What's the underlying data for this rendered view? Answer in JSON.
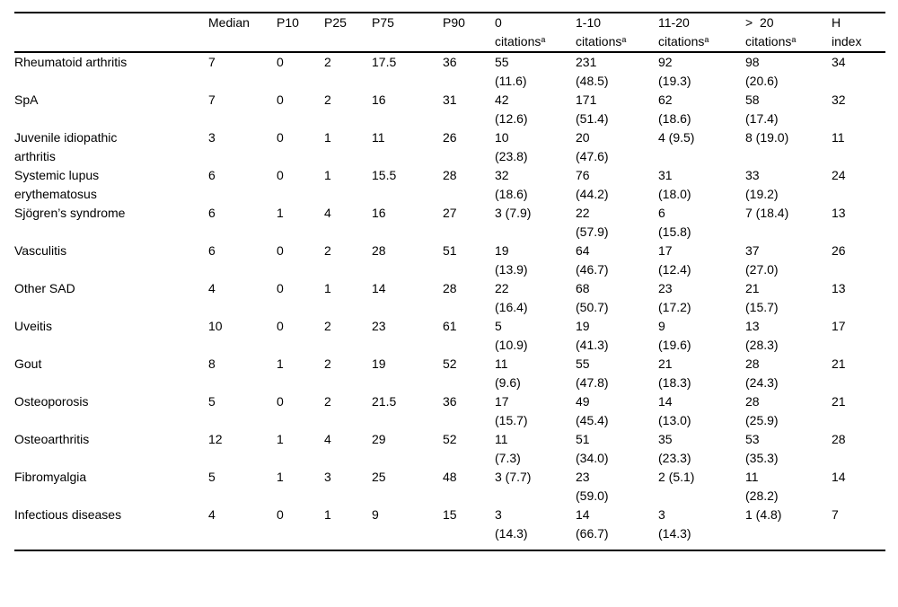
{
  "page": {
    "background_color": "#ffffff",
    "text_color": "#000000",
    "rule_color": "#000000"
  },
  "table": {
    "header": {
      "label": "",
      "median": "Median",
      "p10": "P10",
      "p25": "P25",
      "p75": "P75",
      "p90": "P90",
      "cit0": {
        "line1": "0",
        "line2": "citations",
        "sup": "a"
      },
      "cit1_10": {
        "line1": "1-10",
        "line2": "citations",
        "sup": "a"
      },
      "cit11_20": {
        "line1": "11-20",
        "line2": "citations",
        "sup": "a"
      },
      "cit20": {
        "line1": ">  20",
        "line2": "citations",
        "sup": "a"
      },
      "hindex": {
        "line1": "H",
        "line2": "index"
      }
    },
    "rows": [
      {
        "label": "Rheumatoid arthritis",
        "median": "7",
        "p10": "0",
        "p25": "2",
        "p75": "17.5",
        "p90": "36",
        "cit0": "55\n(11.6)",
        "cit1_10": "231\n(48.5)",
        "cit11_20": "92\n(19.3)",
        "cit20": "98\n(20.6)",
        "hindex": "34"
      },
      {
        "label": "SpA",
        "median": "7",
        "p10": "0",
        "p25": "2",
        "p75": "16",
        "p90": "31",
        "cit0": "42\n(12.6)",
        "cit1_10": "171\n(51.4)",
        "cit11_20": "62\n(18.6)",
        "cit20": "58\n(17.4)",
        "hindex": "32"
      },
      {
        "label": "Juvenile idiopathic\narthritis",
        "median": "3",
        "p10": "0",
        "p25": "1",
        "p75": "11",
        "p90": "26",
        "cit0": "10\n(23.8)",
        "cit1_10": "20\n(47.6)",
        "cit11_20": "4 (9.5)",
        "cit20": "8 (19.0)",
        "hindex": "11"
      },
      {
        "label": "Systemic lupus\nerythematosus",
        "median": "6",
        "p10": "0",
        "p25": "1",
        "p75": "15.5",
        "p90": "28",
        "cit0": "32\n(18.6)",
        "cit1_10": "76\n(44.2)",
        "cit11_20": "31\n(18.0)",
        "cit20": "33\n(19.2)",
        "hindex": "24"
      },
      {
        "label": "Sjögren’s syndrome",
        "median": "6",
        "p10": "1",
        "p25": "4",
        "p75": "16",
        "p90": "27",
        "cit0": "3 (7.9)",
        "cit1_10": "22\n(57.9)",
        "cit11_20": "6\n(15.8)",
        "cit20": "7 (18.4)",
        "hindex": "13"
      },
      {
        "label": "Vasculitis",
        "median": "6",
        "p10": "0",
        "p25": "2",
        "p75": "28",
        "p90": "51",
        "cit0": "19\n(13.9)",
        "cit1_10": "64\n(46.7)",
        "cit11_20": "17\n(12.4)",
        "cit20": "37\n(27.0)",
        "hindex": "26"
      },
      {
        "label": "Other SAD",
        "median": "4",
        "p10": "0",
        "p25": "1",
        "p75": "14",
        "p90": "28",
        "cit0": "22\n(16.4)",
        "cit1_10": "68\n(50.7)",
        "cit11_20": "23\n(17.2)",
        "cit20": "21\n(15.7)",
        "hindex": "13"
      },
      {
        "label": "Uveitis",
        "median": "10",
        "p10": "0",
        "p25": "2",
        "p75": "23",
        "p90": "61",
        "cit0": "5\n(10.9)",
        "cit1_10": "19\n(41.3)",
        "cit11_20": "9\n(19.6)",
        "cit20": "13\n(28.3)",
        "hindex": "17"
      },
      {
        "label": "Gout",
        "median": "8",
        "p10": "1",
        "p25": "2",
        "p75": "19",
        "p90": "52",
        "cit0": "11\n(9.6)",
        "cit1_10": "55\n(47.8)",
        "cit11_20": "21\n(18.3)",
        "cit20": "28\n(24.3)",
        "hindex": "21"
      },
      {
        "label": "Osteoporosis",
        "median": "5",
        "p10": "0",
        "p25": "2",
        "p75": "21.5",
        "p90": "36",
        "cit0": "17\n(15.7)",
        "cit1_10": "49\n(45.4)",
        "cit11_20": "14\n(13.0)",
        "cit20": "28\n(25.9)",
        "hindex": "21"
      },
      {
        "label": "Osteoarthritis",
        "median": "12",
        "p10": "1",
        "p25": "4",
        "p75": "29",
        "p90": "52",
        "cit0": "11\n(7.3)",
        "cit1_10": "51\n(34.0)",
        "cit11_20": "35\n(23.3)",
        "cit20": "53\n(35.3)",
        "hindex": "28"
      },
      {
        "label": "Fibromyalgia",
        "median": "5",
        "p10": "1",
        "p25": "3",
        "p75": "25",
        "p90": "48",
        "cit0": "3 (7.7)",
        "cit1_10": "23\n(59.0)",
        "cit11_20": "2 (5.1)",
        "cit20": "11\n(28.2)",
        "hindex": "14"
      },
      {
        "label": "Infectious diseases",
        "median": "4",
        "p10": "0",
        "p25": "1",
        "p75": "9",
        "p90": "15",
        "cit0": "3\n(14.3)",
        "cit1_10": "14\n(66.7)",
        "cit11_20": "3\n(14.3)",
        "cit20": "1 (4.8)",
        "hindex": "7"
      }
    ]
  }
}
